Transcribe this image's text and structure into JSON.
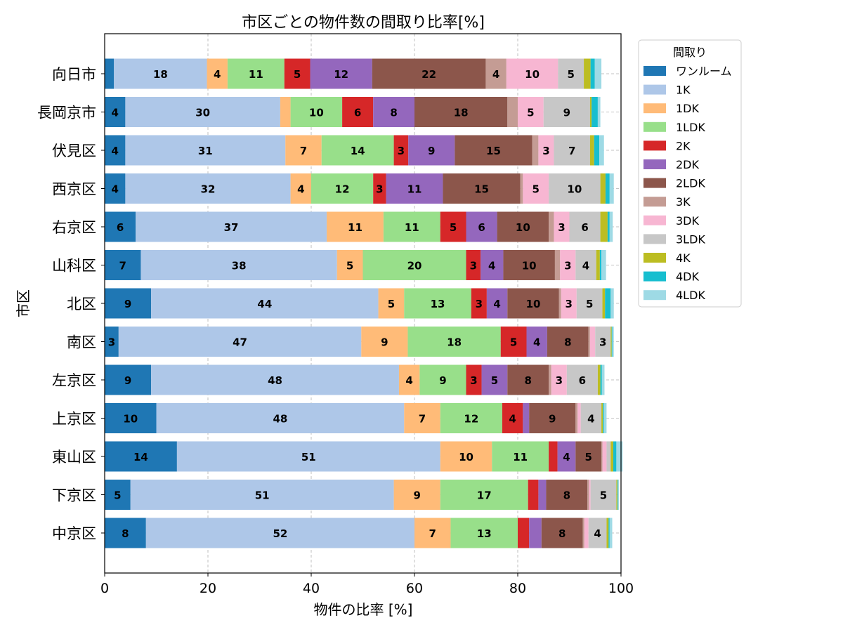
{
  "chart_data": {
    "type": "bar",
    "orientation": "horizontal",
    "stacked": true,
    "title": "市区ごとの物件数の間取り比率[%]",
    "xlabel": "物件の比率 [%]",
    "ylabel": "市区",
    "xlim": [
      0,
      100
    ],
    "x_ticks": [
      "0",
      "20",
      "40",
      "60",
      "80",
      "100"
    ],
    "grid": true,
    "legend": {
      "title": "間取り",
      "placement": "outside-right"
    },
    "categories": [
      "中京区",
      "下京区",
      "東山区",
      "上京区",
      "左京区",
      "南区",
      "北区",
      "山科区",
      "右京区",
      "西京区",
      "伏見区",
      "長岡京市",
      "向日市"
    ],
    "series": [
      {
        "name": "ワンルーム",
        "color": "#1f77b4",
        "values": [
          8,
          5,
          14,
          10,
          9,
          2.7,
          9,
          7,
          6,
          4,
          4,
          4,
          1.8
        ]
      },
      {
        "name": "1K",
        "color": "#aec7e8",
        "values": [
          52,
          51,
          51,
          48,
          48,
          47,
          44,
          38,
          37,
          32,
          31,
          30,
          18
        ]
      },
      {
        "name": "1DK",
        "color": "#ffbb78",
        "values": [
          7,
          9,
          10,
          7,
          4,
          9,
          5,
          5,
          11,
          4,
          7,
          2,
          4
        ]
      },
      {
        "name": "1LDK",
        "color": "#98df8a",
        "values": [
          13,
          17,
          11,
          12,
          9,
          18,
          13,
          20,
          11,
          12,
          14,
          10,
          11
        ]
      },
      {
        "name": "2K",
        "color": "#d62728",
        "values": [
          2.2,
          2,
          1.7,
          4,
          3,
          5,
          3,
          2.8,
          5,
          2.5,
          2.8,
          6,
          5
        ]
      },
      {
        "name": "2DK",
        "color": "#9467bd",
        "values": [
          2.4,
          1.5,
          3.5,
          1.2,
          5,
          4,
          4,
          4.4,
          6,
          11,
          9,
          8,
          12
        ]
      },
      {
        "name": "2LDK",
        "color": "#8c564b",
        "values": [
          8,
          8,
          5,
          9,
          8,
          8,
          10,
          10,
          10,
          15,
          15,
          18,
          22
        ]
      },
      {
        "name": "3K",
        "color": "#c49c94",
        "values": [
          0.3,
          0.3,
          0.2,
          0.4,
          0.5,
          0.3,
          0.4,
          1,
          1,
          0.5,
          1.2,
          2,
          4
        ]
      },
      {
        "name": "3DK",
        "color": "#f7b6d2",
        "values": [
          0.8,
          0.3,
          0.8,
          0.6,
          3,
          1,
          3,
          3,
          3,
          5,
          3,
          5,
          10
        ]
      },
      {
        "name": "3LDK",
        "color": "#c7c7c7",
        "values": [
          3.5,
          5,
          0.8,
          4,
          6,
          3,
          5,
          4,
          6,
          10,
          7,
          9,
          5
        ]
      },
      {
        "name": "4K",
        "color": "#bcbd22",
        "values": [
          0.4,
          0.2,
          0.5,
          0.3,
          0.5,
          0.2,
          0.5,
          0.7,
          1.4,
          1,
          0.8,
          0.3,
          1.3
        ]
      },
      {
        "name": "4DK",
        "color": "#17becf",
        "values": [
          0.2,
          0.1,
          0.6,
          0.2,
          0.3,
          0.1,
          1.1,
          0.3,
          0.4,
          0.8,
          1,
          1.2,
          0.8
        ]
      },
      {
        "name": "4LDK",
        "color": "#9edae5",
        "values": [
          0.5,
          0.2,
          1.2,
          0.5,
          0.5,
          0.3,
          0.6,
          0.9,
          0.6,
          0.8,
          0.9,
          0.5,
          1.3
        ]
      }
    ]
  }
}
